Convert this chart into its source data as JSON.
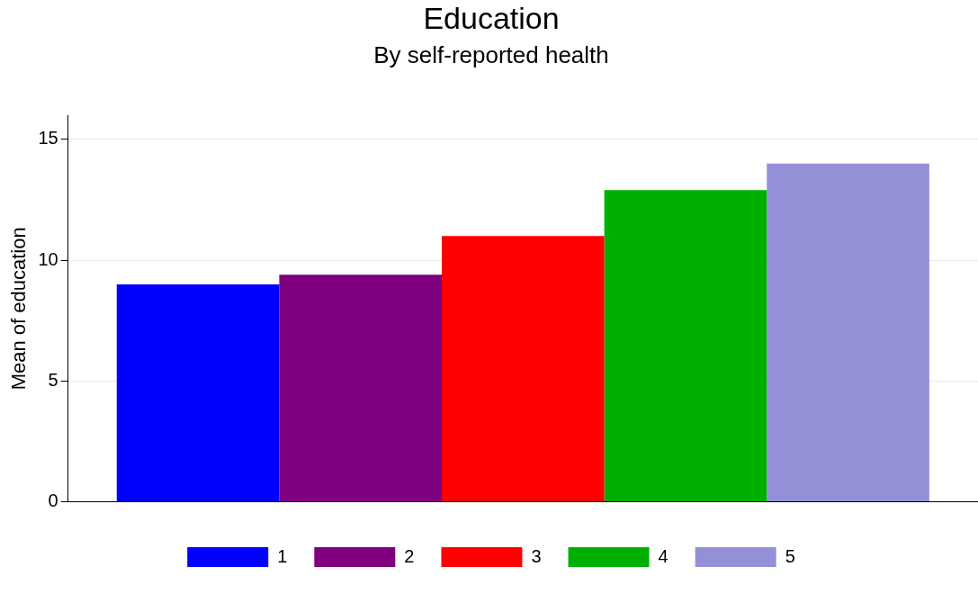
{
  "chart_data": {
    "type": "bar",
    "title": "Education",
    "subtitle": "By self-reported health",
    "ylabel": "Mean of education",
    "categories": [
      null
    ],
    "series": [
      {
        "name": "1",
        "color": "#0000ff",
        "values": [
          9.0
        ]
      },
      {
        "name": "2",
        "color": "#800080",
        "values": [
          9.4
        ]
      },
      {
        "name": "3",
        "color": "#ff0000",
        "values": [
          11.0
        ]
      },
      {
        "name": "4",
        "color": "#00b000",
        "values": [
          12.9
        ]
      },
      {
        "name": "5",
        "color": "#9490d8",
        "values": [
          14.0
        ]
      }
    ],
    "ylim": [
      0,
      16
    ],
    "yticks": [
      0,
      5,
      10,
      15
    ],
    "grid": "y",
    "legend": "bottom"
  }
}
